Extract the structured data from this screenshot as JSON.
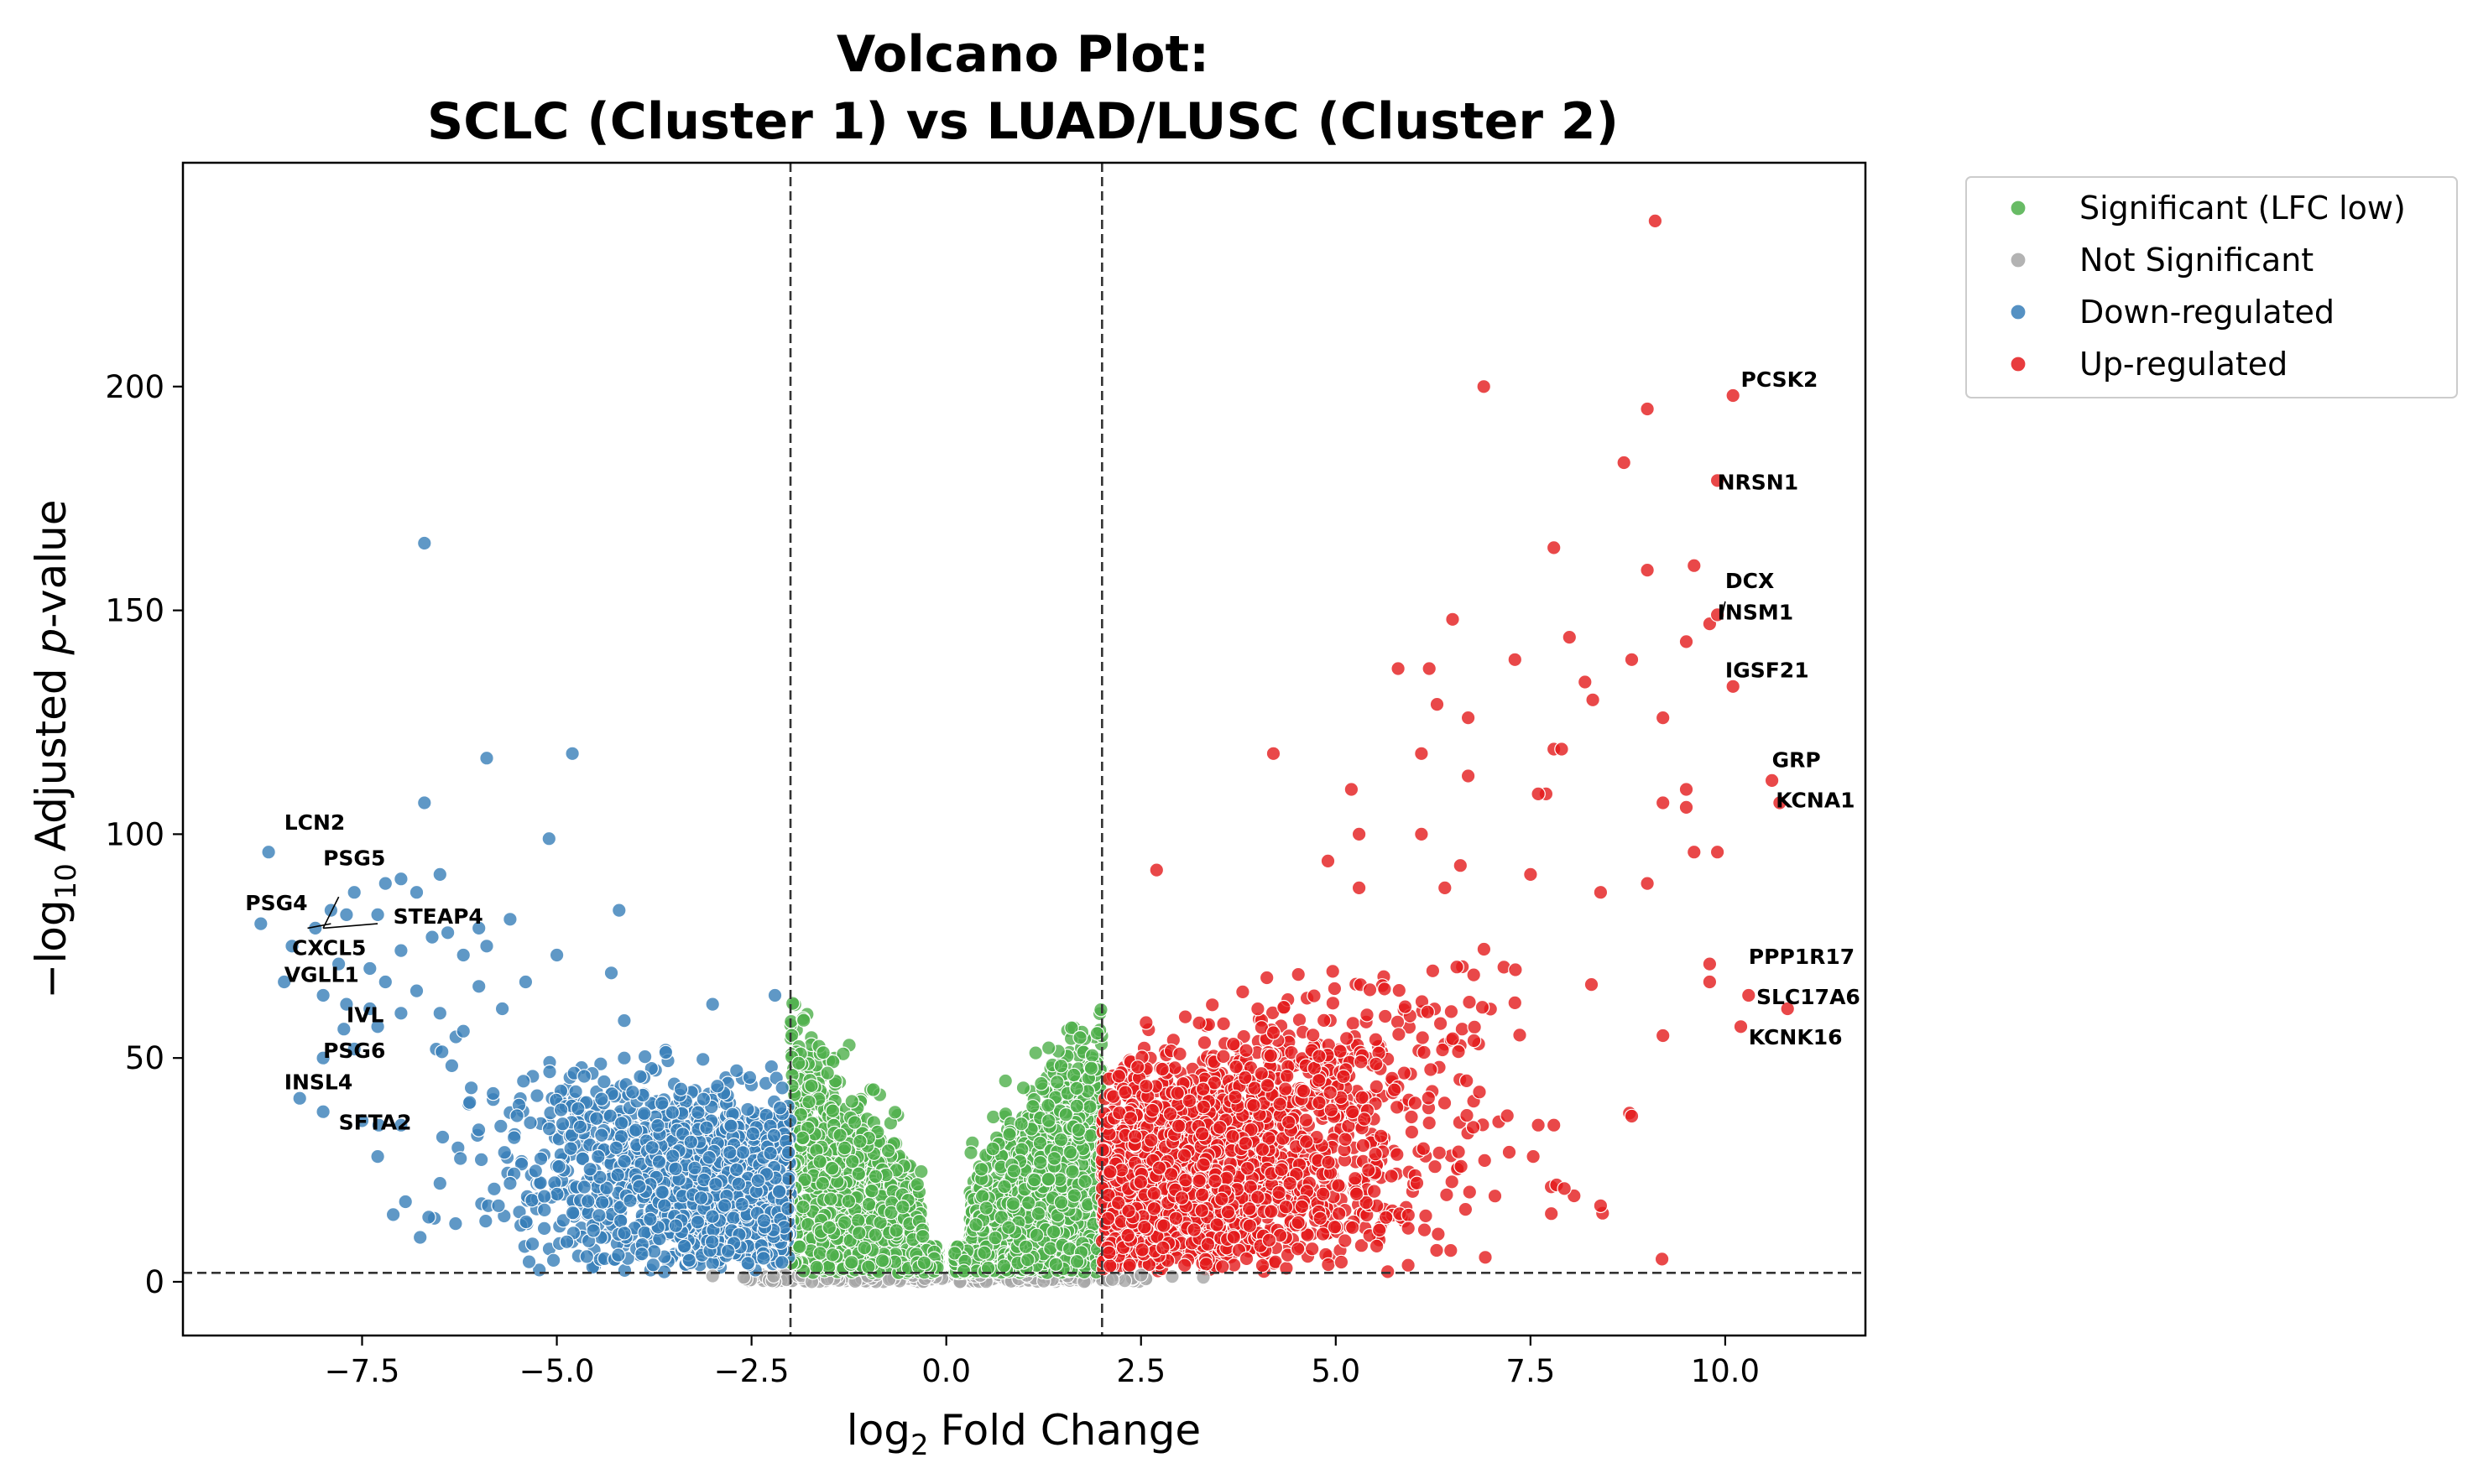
{
  "chart_data": {
    "type": "scatter",
    "title_line1": "Volcano Plot:",
    "title_line2": "SCLC (Cluster 1) vs LUAD/LUSC (Cluster 2)",
    "xlabel_prefix": "log",
    "xlabel_sub": "2",
    "xlabel_suffix": "Fold Change",
    "ylabel_prefix": "−log",
    "ylabel_sub": "10",
    "ylabel_mid": "Adjusted ",
    "ylabel_italic": "p",
    "ylabel_suffix": "-value",
    "xlim": [
      -9.8,
      11.8
    ],
    "ylim": [
      -12,
      250
    ],
    "x_ticks": [
      -7.5,
      -5.0,
      -2.5,
      0.0,
      2.5,
      5.0,
      7.5,
      10.0
    ],
    "x_tick_labels": [
      "−7.5",
      "−5.0",
      "−2.5",
      "0.0",
      "2.5",
      "5.0",
      "7.5",
      "10.0"
    ],
    "y_ticks": [
      0,
      50,
      100,
      150,
      200
    ],
    "y_tick_labels": [
      "0",
      "50",
      "100",
      "150",
      "200"
    ],
    "thresholds": {
      "lfc": [
        -2,
        2
      ],
      "neg_log10_padj": 2
    },
    "grid": false,
    "legend_position": "outside-top-right",
    "series": [
      {
        "name": "Significant (LFC low)",
        "color": "#4daf4a"
      },
      {
        "name": "Not Significant",
        "color": "#a6a6a6"
      },
      {
        "name": "Down-regulated",
        "color": "#377eb8"
      },
      {
        "name": "Up-regulated",
        "color": "#e41a1c"
      }
    ],
    "highlight_points": {
      "down": [
        [
          -6.7,
          165
        ],
        [
          -5.9,
          117
        ],
        [
          -4.8,
          118
        ],
        [
          -6.7,
          107
        ],
        [
          -5.1,
          99
        ],
        [
          -8.7,
          96
        ],
        [
          -7.0,
          90
        ],
        [
          -7.2,
          89
        ],
        [
          -6.5,
          91
        ],
        [
          -7.6,
          87
        ],
        [
          -6.8,
          87
        ],
        [
          -7.9,
          83
        ],
        [
          -4.2,
          83
        ],
        [
          -7.3,
          82
        ],
        [
          -7.7,
          82
        ],
        [
          -8.8,
          80
        ],
        [
          -8.1,
          79
        ],
        [
          -6.0,
          79
        ],
        [
          -5.6,
          81
        ],
        [
          -6.4,
          78
        ],
        [
          -6.6,
          77
        ],
        [
          -8.4,
          75
        ],
        [
          -5.9,
          75
        ],
        [
          -7.0,
          74
        ],
        [
          -6.2,
          73
        ],
        [
          -5.0,
          73
        ],
        [
          -4.3,
          69
        ],
        [
          -7.8,
          71
        ],
        [
          -7.4,
          70
        ],
        [
          -8.5,
          67
        ],
        [
          -7.2,
          67
        ],
        [
          -6.8,
          65
        ],
        [
          -6.0,
          66
        ],
        [
          -5.4,
          67
        ],
        [
          -3.0,
          62
        ],
        [
          -2.2,
          64
        ],
        [
          -8.0,
          64
        ],
        [
          -7.7,
          62
        ],
        [
          -7.4,
          61
        ],
        [
          -7.0,
          60
        ],
        [
          -6.5,
          60
        ],
        [
          -5.7,
          61
        ],
        [
          -7.3,
          57
        ],
        [
          -6.2,
          56
        ],
        [
          -8.0,
          50
        ],
        [
          -7.6,
          52
        ],
        [
          -8.3,
          41
        ],
        [
          -8.0,
          38
        ],
        [
          -7.5,
          36
        ],
        [
          -7.0,
          35
        ],
        [
          -7.3,
          28
        ],
        [
          -7.1,
          15
        ],
        [
          -6.3,
          13
        ],
        [
          -6.5,
          22
        ],
        [
          -5.6,
          22
        ],
        [
          -4.6,
          18
        ],
        [
          -3.8,
          14
        ]
      ],
      "up": [
        [
          9.1,
          237
        ],
        [
          6.9,
          200
        ],
        [
          10.1,
          198
        ],
        [
          9.0,
          195
        ],
        [
          8.7,
          183
        ],
        [
          9.9,
          179
        ],
        [
          7.8,
          164
        ],
        [
          9.6,
          160
        ],
        [
          9.0,
          159
        ],
        [
          6.5,
          148
        ],
        [
          9.8,
          147
        ],
        [
          9.9,
          149
        ],
        [
          9.5,
          143
        ],
        [
          8.0,
          144
        ],
        [
          7.3,
          139
        ],
        [
          8.8,
          139
        ],
        [
          5.8,
          137
        ],
        [
          6.2,
          137
        ],
        [
          8.2,
          134
        ],
        [
          10.1,
          133
        ],
        [
          8.3,
          130
        ],
        [
          6.3,
          129
        ],
        [
          9.2,
          126
        ],
        [
          6.7,
          126
        ],
        [
          7.8,
          119
        ],
        [
          7.9,
          119
        ],
        [
          4.2,
          118
        ],
        [
          6.1,
          118
        ],
        [
          10.6,
          112
        ],
        [
          6.7,
          113
        ],
        [
          5.2,
          110
        ],
        [
          9.5,
          110
        ],
        [
          7.7,
          109
        ],
        [
          7.6,
          109
        ],
        [
          9.2,
          107
        ],
        [
          10.7,
          107
        ],
        [
          9.5,
          106
        ],
        [
          5.3,
          100
        ],
        [
          6.1,
          100
        ],
        [
          9.9,
          96
        ],
        [
          9.6,
          96
        ],
        [
          4.9,
          94
        ],
        [
          6.6,
          93
        ],
        [
          2.7,
          92
        ],
        [
          7.5,
          91
        ],
        [
          9.0,
          89
        ],
        [
          5.3,
          88
        ],
        [
          6.4,
          88
        ],
        [
          8.4,
          87
        ],
        [
          9.8,
          71
        ],
        [
          9.8,
          67
        ],
        [
          10.3,
          64
        ],
        [
          10.8,
          61
        ],
        [
          10.2,
          57
        ],
        [
          9.2,
          55
        ],
        [
          8.4,
          17
        ],
        [
          7.6,
          35
        ],
        [
          7.8,
          35
        ],
        [
          8.8,
          37
        ]
      ]
    },
    "gene_labels": [
      "LCN2",
      "PSG5",
      "PSG4",
      "STEAP4",
      "CXCL5",
      "VGLL1",
      "IVL",
      "PSG6",
      "INSL4",
      "SFTA2",
      "PCSK2",
      "NRSN1",
      "DCX",
      "INSM1",
      "IGSF21",
      "GRP",
      "KCNA1",
      "PPP1R17",
      "SLC17A6",
      "KCNK16"
    ]
  }
}
